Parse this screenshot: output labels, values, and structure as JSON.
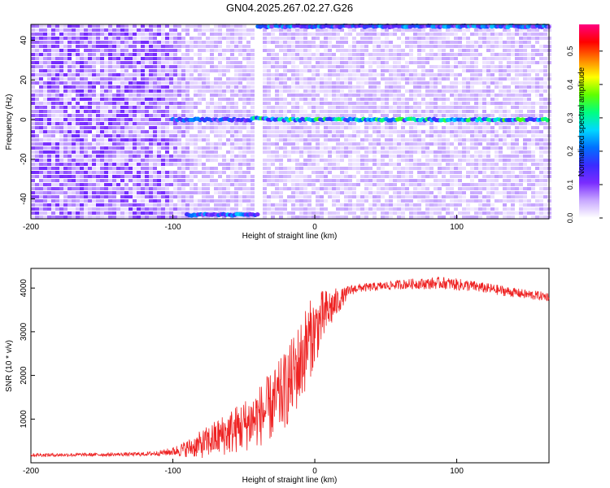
{
  "figure_title": "GN04.2025.267.02.27.G26",
  "chart_data": [
    {
      "type": "heatmap",
      "xlabel": "Height of straight line (km)",
      "ylabel": "Frequency (Hz)",
      "xlim": [
        -200,
        165
      ],
      "ylim": [
        -50,
        48
      ],
      "xticks": [
        -200,
        -100,
        0,
        100
      ],
      "yticks": [
        -40,
        -20,
        0,
        20,
        40
      ],
      "colorbar": {
        "label": "Normalized spectral amplitude",
        "range": [
          0.0,
          0.58
        ],
        "ticks": [
          0.0,
          0.1,
          0.2,
          0.3,
          0.4,
          0.5
        ],
        "colormap": [
          "#ffffff",
          "#c8a8ff",
          "#7a2cff",
          "#3a2cff",
          "#0070ff",
          "#00d8ff",
          "#00ff80",
          "#60ff00",
          "#ffff00",
          "#ff8000",
          "#ff0000",
          "#ff0080"
        ]
      },
      "features": [
        {
          "name": "carrier tone",
          "x_range": [
            -100,
            165
          ],
          "y": 0,
          "peak_amplitude": 0.35
        },
        {
          "name": "aliased band top",
          "x_range": [
            -40,
            165
          ],
          "y": 47,
          "peak_amplitude": 0.25
        },
        {
          "name": "aliased band bottom",
          "x_range": [
            -90,
            -40
          ],
          "y": -48,
          "peak_amplitude": 0.25
        },
        {
          "name": "low-amplitude column",
          "x_range": [
            -42,
            -38
          ],
          "y_range": [
            -50,
            48
          ],
          "peak_amplitude": 0.02
        }
      ]
    },
    {
      "type": "line",
      "xlabel": "Height of straight line (km)",
      "ylabel": "SNR (10 * v/v)",
      "xlim": [
        -200,
        165
      ],
      "ylim": [
        0,
        4450
      ],
      "xticks": [
        -200,
        -100,
        0,
        100
      ],
      "yticks": [
        1000,
        2000,
        3000,
        4000
      ],
      "series": [
        {
          "color": "#ee2222",
          "x": [
            -200,
            -180,
            -160,
            -140,
            -120,
            -110,
            -100,
            -90,
            -80,
            -70,
            -60,
            -50,
            -40,
            -30,
            -20,
            -10,
            -5,
            0,
            5,
            10,
            15,
            20,
            25,
            30,
            40,
            50,
            60,
            70,
            80,
            90,
            100,
            110,
            120,
            130,
            140,
            150,
            165
          ],
          "y": [
            180,
            180,
            185,
            190,
            200,
            220,
            260,
            330,
            420,
            560,
            700,
            850,
            1050,
            1300,
            1700,
            2300,
            2750,
            3000,
            3300,
            3500,
            3650,
            3800,
            3950,
            4000,
            4020,
            4050,
            4080,
            4100,
            4100,
            4120,
            4080,
            4050,
            4000,
            3950,
            3900,
            3850,
            3800
          ],
          "noise_amplitude": [
            40,
            40,
            40,
            40,
            45,
            60,
            100,
            200,
            320,
            420,
            520,
            600,
            700,
            800,
            900,
            1000,
            950,
            800,
            650,
            500,
            350,
            200,
            130,
            100,
            100,
            100,
            110,
            120,
            130,
            140,
            140,
            130,
            120,
            120,
            110,
            110,
            100
          ]
        }
      ]
    }
  ]
}
